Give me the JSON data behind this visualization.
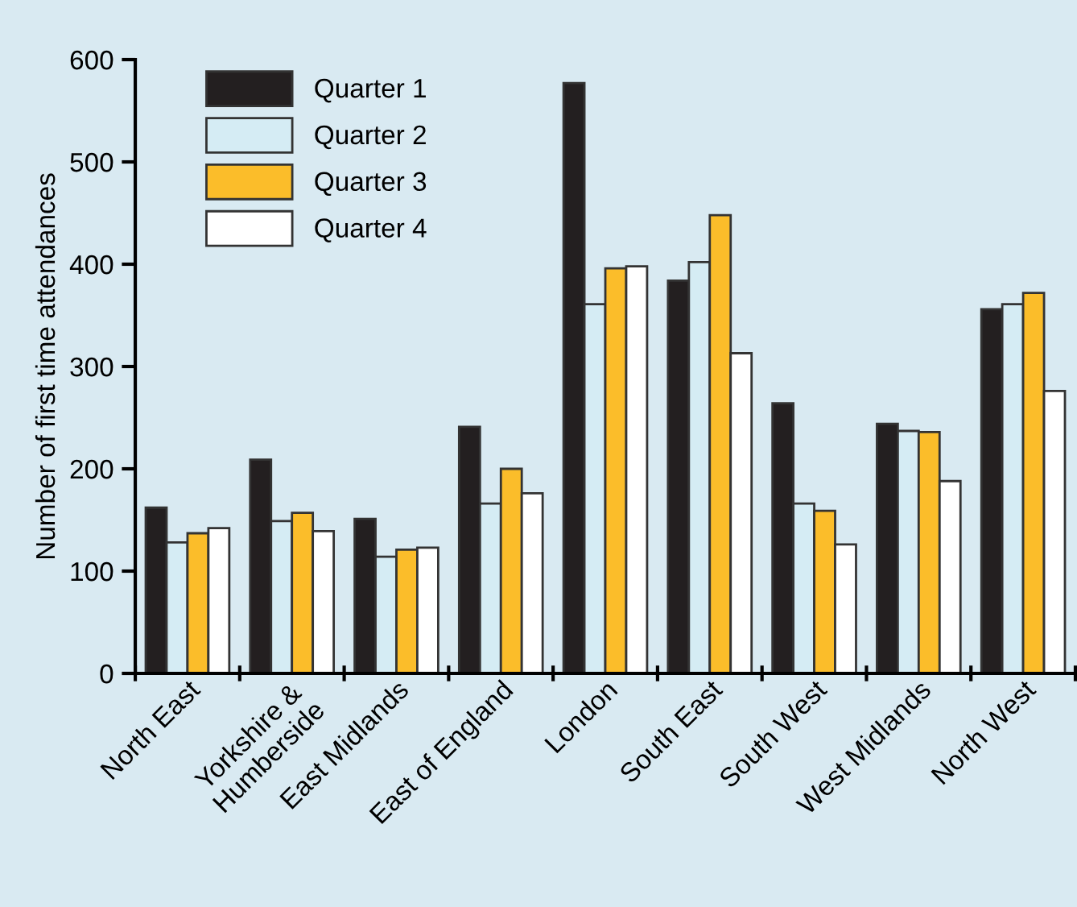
{
  "chart_data": {
    "type": "bar",
    "ylabel": "Number of first time attendances",
    "categories": [
      "North East",
      "Yorkshire &\nHumberside",
      "East Midlands",
      "East of England",
      "London",
      "South East",
      "South West",
      "West Midlands",
      "North West"
    ],
    "series": [
      {
        "name": "Quarter 1",
        "color": "#231f20",
        "values": [
          162,
          209,
          151,
          241,
          577,
          384,
          264,
          244,
          356
        ]
      },
      {
        "name": "Quarter 2",
        "color": "#d5ecf4",
        "values": [
          128,
          149,
          114,
          166,
          361,
          402,
          166,
          237,
          361
        ]
      },
      {
        "name": "Quarter 3",
        "color": "#fbbd2a",
        "values": [
          137,
          157,
          121,
          200,
          396,
          448,
          159,
          236,
          372
        ]
      },
      {
        "name": "Quarter 4",
        "color": "#ffffff",
        "values": [
          142,
          139,
          123,
          176,
          398,
          313,
          126,
          188,
          276
        ]
      }
    ],
    "ylim": [
      0,
      600
    ],
    "yticks": [
      0,
      100,
      200,
      300,
      400,
      500,
      600
    ],
    "grid": false,
    "legend": "top left"
  }
}
